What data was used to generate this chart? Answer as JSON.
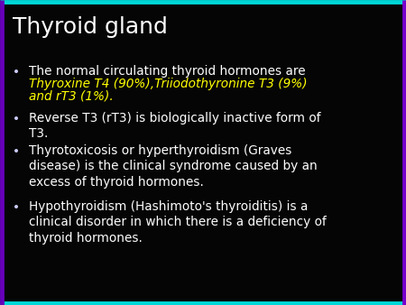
{
  "title": "Thyroid gland",
  "title_color": "#ffffff",
  "title_fontsize": 18,
  "background_color": "#050505",
  "border_top_color": "#00d8d8",
  "border_bottom_color": "#00d8d8",
  "border_left_color": "#6600bb",
  "border_right_color": "#7700cc",
  "bullet_color": "#ccccff",
  "bullet_symbol": "•",
  "body_fontsize": 9.8,
  "font_family": "DejaVu Sans",
  "bullets": [
    {
      "segments": [
        {
          "text": "The normal circulating thyroid hormones are ",
          "color": "#ffffff",
          "italic": false
        },
        {
          "text": "Thyroxine T4 (90%),Triiodothyronine T3 (9%)",
          "color": "#ffff00",
          "italic": true
        },
        {
          "text": "\nand rT3 (1%).",
          "color": "#ffff00",
          "italic": true
        }
      ]
    },
    {
      "segments": [
        {
          "text": "Reverse T3 (rT3) is biologically inactive form of\nT3.",
          "color": "#ffffff",
          "italic": false
        }
      ]
    },
    {
      "segments": [
        {
          "text": "Thyrotoxicosis or hyperthyroidism (Graves\ndisease) is the clinical syndrome caused by an\nexcess of thyroid hormones.",
          "color": "#ffffff",
          "italic": false
        }
      ]
    },
    {
      "segments": [
        {
          "text": "Hypothyroidism (Hashimoto's thyroiditis) is a\nclinical disorder in which there is a deficiency of\nthyroid hormones.",
          "color": "#ffffff",
          "italic": false
        }
      ]
    }
  ]
}
